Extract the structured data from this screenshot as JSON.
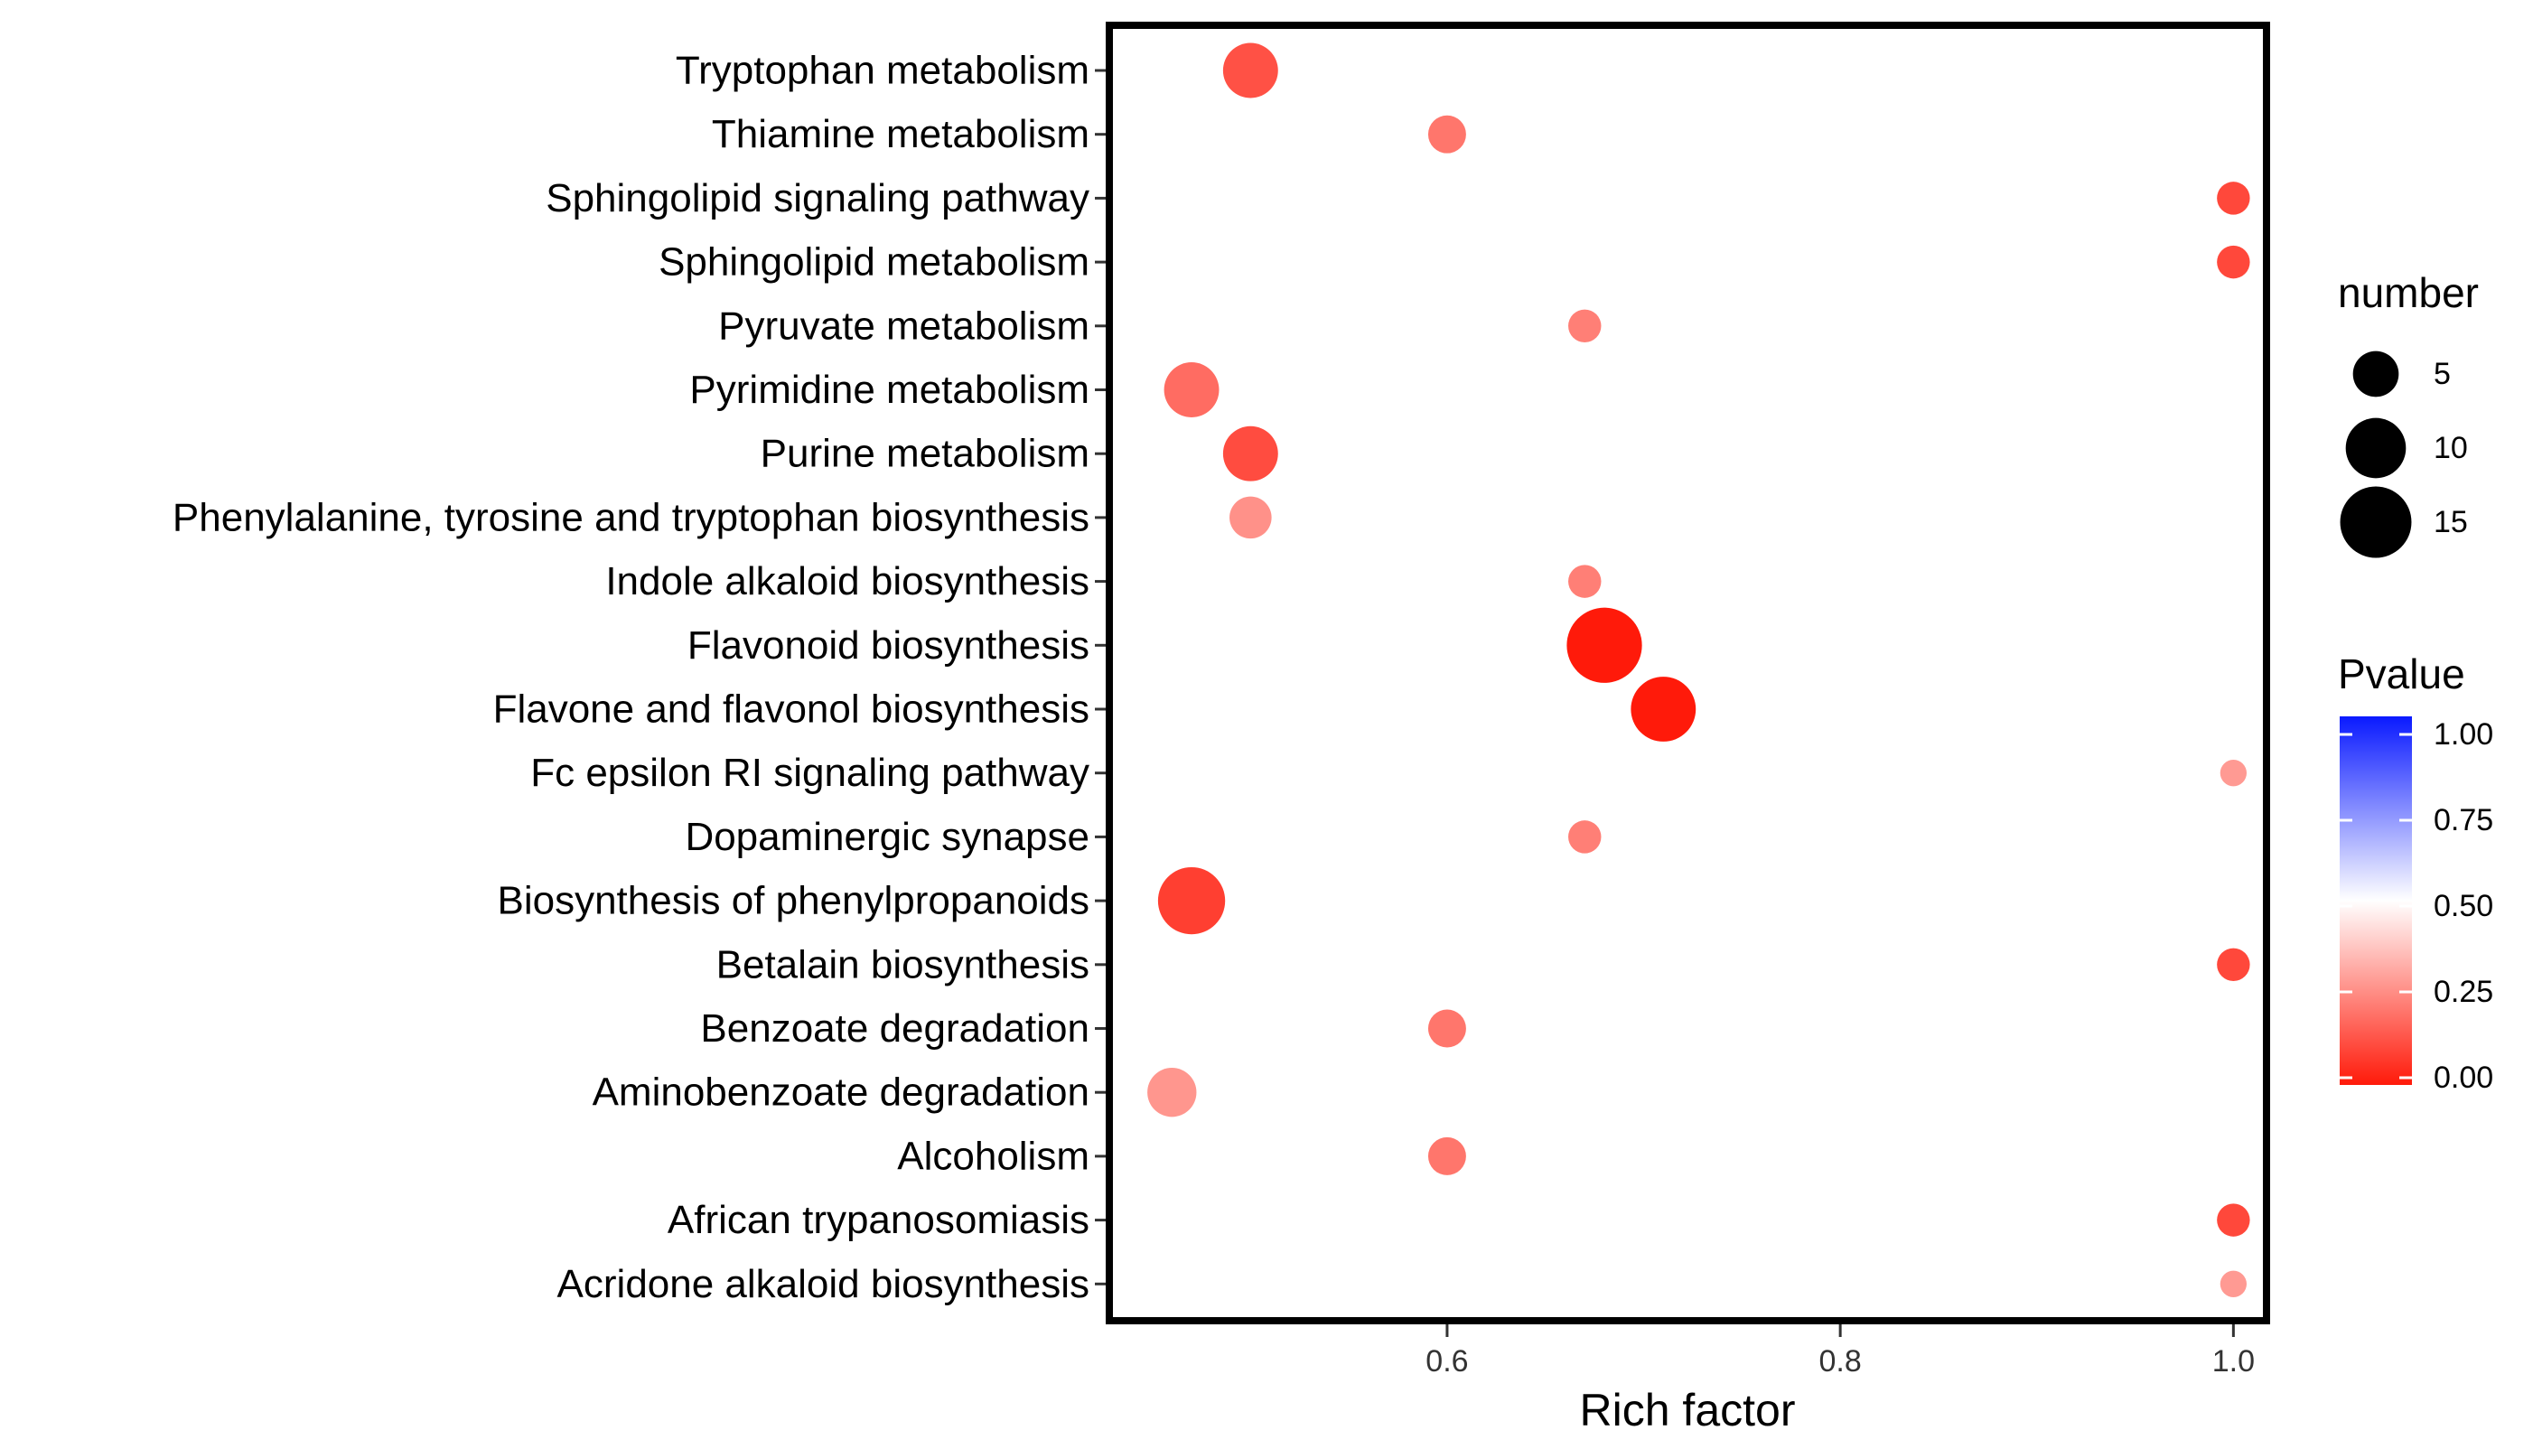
{
  "chart_data": {
    "type": "scatter",
    "title": "",
    "xlabel": "Rich factor",
    "ylabel": "",
    "xlim": [
      0.43,
      1.015
    ],
    "xticks": [
      0.6,
      0.8,
      1.0
    ],
    "xtick_labels": [
      "0.6",
      "0.8",
      "1.0"
    ],
    "grid": false,
    "categories": [
      "Tryptophan metabolism",
      "Thiamine metabolism",
      "Sphingolipid signaling pathway",
      "Sphingolipid metabolism",
      "Pyruvate metabolism",
      "Pyrimidine metabolism",
      "Purine metabolism",
      "Phenylalanine, tyrosine and tryptophan biosynthesis",
      "Indole alkaloid biosynthesis",
      "Flavonoid biosynthesis",
      "Flavone and flavonol biosynthesis",
      "Fc epsilon RI signaling pathway",
      "Dopaminergic synapse",
      "Biosynthesis of phenylpropanoids",
      "Betalain biosynthesis",
      "Benzoate degradation",
      "Aminobenzoate degradation",
      "Alcoholism",
      "African trypanosomiasis",
      "Acridone alkaloid biosynthesis"
    ],
    "points": [
      {
        "pathway": "Tryptophan metabolism",
        "rich_factor": 0.5,
        "number": 8,
        "pvalue": 0.12
      },
      {
        "pathway": "Thiamine metabolism",
        "rich_factor": 0.6,
        "number": 3,
        "pvalue": 0.2
      },
      {
        "pathway": "Sphingolipid signaling pathway",
        "rich_factor": 1.0,
        "number": 2,
        "pvalue": 0.1
      },
      {
        "pathway": "Sphingolipid metabolism",
        "rich_factor": 1.0,
        "number": 2,
        "pvalue": 0.1
      },
      {
        "pathway": "Pyruvate metabolism",
        "rich_factor": 0.67,
        "number": 2,
        "pvalue": 0.22
      },
      {
        "pathway": "Pyrimidine metabolism",
        "rich_factor": 0.47,
        "number": 8,
        "pvalue": 0.18
      },
      {
        "pathway": "Purine metabolism",
        "rich_factor": 0.5,
        "number": 8,
        "pvalue": 0.11
      },
      {
        "pathway": "Phenylalanine, tyrosine and tryptophan biosynthesis",
        "rich_factor": 0.5,
        "number": 4,
        "pvalue": 0.26
      },
      {
        "pathway": "Indole alkaloid biosynthesis",
        "rich_factor": 0.67,
        "number": 2,
        "pvalue": 0.22
      },
      {
        "pathway": "Flavonoid biosynthesis",
        "rich_factor": 0.68,
        "number": 17,
        "pvalue": 0.0
      },
      {
        "pathway": "Flavone and flavonol biosynthesis",
        "rich_factor": 0.71,
        "number": 12,
        "pvalue": 0.0
      },
      {
        "pathway": "Fc epsilon RI signaling pathway",
        "rich_factor": 1.0,
        "number": 1,
        "pvalue": 0.28
      },
      {
        "pathway": "Dopaminergic synapse",
        "rich_factor": 0.67,
        "number": 2,
        "pvalue": 0.22
      },
      {
        "pathway": "Biosynthesis of phenylpropanoids",
        "rich_factor": 0.47,
        "number": 13,
        "pvalue": 0.08
      },
      {
        "pathway": "Betalain biosynthesis",
        "rich_factor": 1.0,
        "number": 2,
        "pvalue": 0.1
      },
      {
        "pathway": "Benzoate degradation",
        "rich_factor": 0.6,
        "number": 3,
        "pvalue": 0.2
      },
      {
        "pathway": "Aminobenzoate degradation",
        "rich_factor": 0.46,
        "number": 6,
        "pvalue": 0.27
      },
      {
        "pathway": "Alcoholism",
        "rich_factor": 0.6,
        "number": 3,
        "pvalue": 0.2
      },
      {
        "pathway": "African trypanosomiasis",
        "rich_factor": 1.0,
        "number": 2,
        "pvalue": 0.1
      },
      {
        "pathway": "Acridone alkaloid biosynthesis",
        "rich_factor": 1.0,
        "number": 1,
        "pvalue": 0.28
      }
    ],
    "size_legend": {
      "title": "number",
      "values": [
        5,
        10,
        15
      ],
      "labels": [
        "5",
        "10",
        "15"
      ]
    },
    "color_legend": {
      "title": "Pvalue",
      "low_color": "#ff1a0a",
      "mid_color": "#ffffff",
      "high_color": "#0a1aff",
      "midpoint": 0.5,
      "ticks": [
        1.0,
        0.75,
        0.5,
        0.25,
        0.0
      ],
      "tick_labels": [
        "1.00",
        "0.75",
        "0.50",
        "0.25",
        "0.00"
      ],
      "legend_position": "right"
    }
  }
}
